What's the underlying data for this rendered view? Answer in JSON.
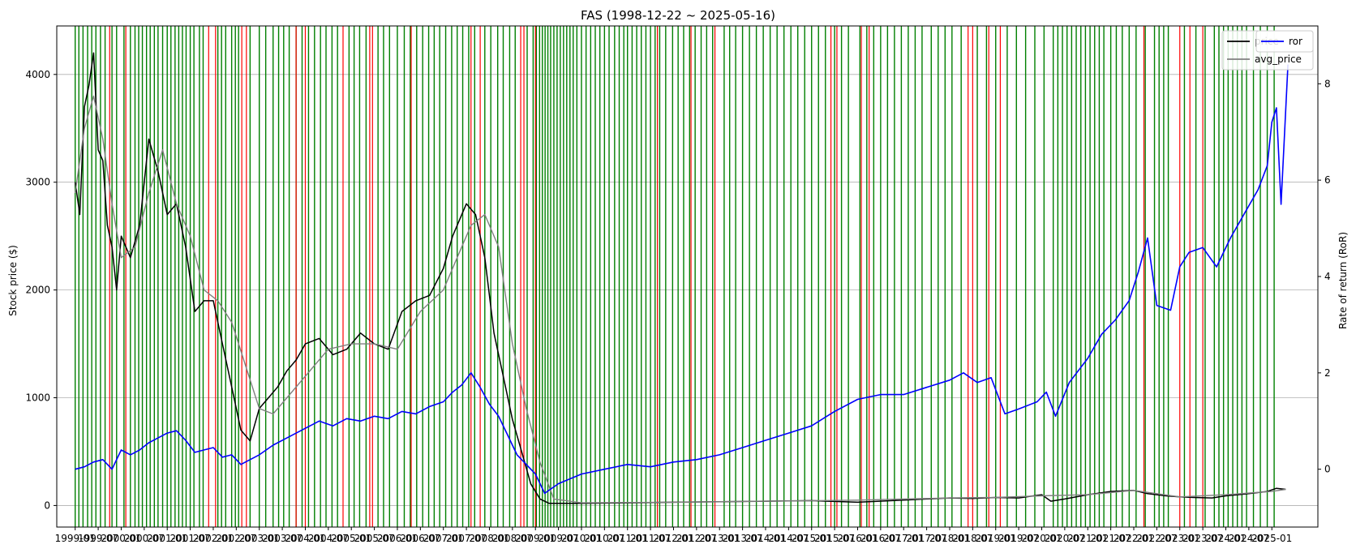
{
  "chart_data": {
    "type": "line",
    "title": "FAS (1998-12-22 ~ 2025-05-16)",
    "ylabel_left": "Stock price ($)",
    "ylabel_right": "Rate of return (RoR)",
    "ylim_left": [
      -200,
      4450
    ],
    "ylim_right": [
      -1.2,
      9.2
    ],
    "xlim": [
      1998.6,
      2026.0
    ],
    "grid": "horizontal",
    "left_ticks": [
      0,
      1000,
      2000,
      3000,
      4000
    ],
    "right_ticks": [
      0,
      2,
      4,
      6,
      8
    ],
    "x_tick_labels": [
      "1999-01",
      "1999-07",
      "2000-01",
      "2000-07",
      "2001-01",
      "2001-07",
      "2002-01",
      "2002-07",
      "2003-01",
      "2003-07",
      "2004-01",
      "2004-07",
      "2005-01",
      "2005-07",
      "2006-01",
      "2006-07",
      "2007-01",
      "2007-07",
      "2008-01",
      "2008-07",
      "2009-01",
      "2009-07",
      "2010-01",
      "2010-07",
      "2011-01",
      "2011-07",
      "2012-01",
      "2012-07",
      "2013-01",
      "2013-07",
      "2014-01",
      "2014-07",
      "2015-01",
      "2015-07",
      "2016-01",
      "2016-07",
      "2017-01",
      "2017-07",
      "2018-01",
      "2018-07",
      "2019-01",
      "2019-07",
      "2020-01",
      "2020-07",
      "2021-01",
      "2021-07",
      "2022-01",
      "2022-07",
      "2023-01",
      "2023-07",
      "2024-01",
      "2024-07",
      "2025-01"
    ],
    "legend_placement": "top-right",
    "legend_left": [
      "price",
      "avg_price"
    ],
    "legend_right": [
      "ror"
    ],
    "colors": {
      "price": "#000000",
      "avg_price": "#808080",
      "ror": "#0000ff",
      "buy_line": "#008000",
      "sell_line": "#ff0000",
      "grid": "#b0b0b0"
    },
    "series": [
      {
        "name": "price",
        "axis": "left",
        "x": [
          1999.0,
          1999.1,
          1999.2,
          1999.3,
          1999.4,
          1999.5,
          1999.6,
          1999.7,
          1999.8,
          1999.9,
          2000.0,
          2000.2,
          2000.4,
          2000.6,
          2000.8,
          2001.0,
          2001.2,
          2001.4,
          2001.6,
          2001.8,
          2002.0,
          2002.2,
          2002.4,
          2002.6,
          2002.8,
          2003.0,
          2003.2,
          2003.4,
          2003.6,
          2003.8,
          2004.0,
          2004.3,
          2004.6,
          2004.9,
          2005.2,
          2005.5,
          2005.8,
          2006.1,
          2006.4,
          2006.7,
          2007.0,
          2007.2,
          2007.4,
          2007.5,
          2007.7,
          2007.9,
          2008.1,
          2008.3,
          2008.5,
          2008.7,
          2008.9,
          2009.1,
          2009.3,
          2010.0,
          2011.0,
          2012.0,
          2013.0,
          2014.0,
          2015.0,
          2015.5,
          2016.0,
          2017.0,
          2017.5,
          2018.0,
          2018.5,
          2019.0,
          2019.5,
          2020.0,
          2020.2,
          2020.5,
          2021.0,
          2021.5,
          2022.0,
          2022.3,
          2022.7,
          2023.0,
          2023.3,
          2023.7,
          2024.0,
          2024.5,
          2024.9,
          2025.1,
          2025.3
        ],
        "values": [
          3000,
          2700,
          3700,
          3900,
          4200,
          3300,
          3200,
          2600,
          2400,
          2000,
          2500,
          2300,
          2600,
          3400,
          3100,
          2700,
          2800,
          2400,
          1800,
          1900,
          1900,
          1500,
          1100,
          700,
          600,
          900,
          1000,
          1100,
          1250,
          1350,
          1500,
          1550,
          1400,
          1450,
          1600,
          1500,
          1450,
          1800,
          1900,
          1950,
          2200,
          2500,
          2700,
          2800,
          2700,
          2300,
          1600,
          1200,
          800,
          500,
          200,
          60,
          20,
          20,
          25,
          30,
          35,
          40,
          45,
          38,
          30,
          50,
          60,
          70,
          65,
          75,
          70,
          100,
          40,
          60,
          100,
          130,
          140,
          110,
          90,
          80,
          75,
          70,
          90,
          110,
          130,
          160,
          150
        ]
      },
      {
        "name": "avg_price",
        "axis": "left",
        "x": [
          1999.0,
          1999.2,
          1999.4,
          1999.6,
          1999.8,
          2000.0,
          2000.3,
          2000.6,
          2000.9,
          2001.2,
          2001.5,
          2001.8,
          2002.1,
          2002.4,
          2002.7,
          2003.0,
          2003.3,
          2003.6,
          2004.0,
          2004.5,
          2005.0,
          2005.5,
          2006.0,
          2006.5,
          2007.0,
          2007.3,
          2007.6,
          2007.9,
          2008.2,
          2008.5,
          2008.8,
          2009.1,
          2009.4,
          2010.0,
          2012.0,
          2014.0,
          2016.0,
          2018.0,
          2019.0,
          2020.0,
          2021.0,
          2022.0,
          2023.0,
          2024.0,
          2025.0,
          2025.3
        ],
        "values": [
          2900,
          3500,
          3800,
          3400,
          2800,
          2300,
          2400,
          2900,
          3300,
          2800,
          2500,
          2000,
          1900,
          1700,
          1300,
          900,
          850,
          1000,
          1200,
          1450,
          1500,
          1500,
          1450,
          1800,
          2000,
          2300,
          2600,
          2700,
          2400,
          1500,
          900,
          400,
          60,
          25,
          30,
          40,
          50,
          70,
          75,
          90,
          100,
          140,
          80,
          100,
          130,
          150
        ]
      },
      {
        "name": "ror",
        "axis": "right",
        "x": [
          1999.0,
          1999.2,
          1999.4,
          1999.6,
          1999.8,
          2000.0,
          2000.2,
          2000.4,
          2000.6,
          2000.8,
          2001.0,
          2001.2,
          2001.4,
          2001.6,
          2001.8,
          2002.0,
          2002.2,
          2002.4,
          2002.6,
          2002.8,
          2003.0,
          2003.3,
          2003.6,
          2004.0,
          2004.3,
          2004.6,
          2004.9,
          2005.2,
          2005.5,
          2005.8,
          2006.1,
          2006.4,
          2006.7,
          2007.0,
          2007.2,
          2007.4,
          2007.6,
          2007.8,
          2008.0,
          2008.2,
          2008.4,
          2008.6,
          2008.8,
          2009.0,
          2009.2,
          2009.5,
          2010.0,
          2010.5,
          2011.0,
          2011.5,
          2012.0,
          2012.5,
          2013.0,
          2013.5,
          2014.0,
          2014.5,
          2015.0,
          2015.5,
          2016.0,
          2016.5,
          2017.0,
          2017.5,
          2018.0,
          2018.3,
          2018.6,
          2018.9,
          2019.2,
          2019.5,
          2019.9,
          2020.1,
          2020.3,
          2020.6,
          2021.0,
          2021.3,
          2021.6,
          2021.9,
          2022.1,
          2022.3,
          2022.5,
          2022.8,
          2023.0,
          2023.2,
          2023.5,
          2023.8,
          2024.1,
          2024.4,
          2024.7,
          2024.9,
          2025.0,
          2025.1,
          2025.2,
          2025.35
        ],
        "values": [
          0.0,
          0.05,
          0.15,
          0.2,
          0.0,
          0.4,
          0.3,
          0.4,
          0.55,
          0.65,
          0.75,
          0.8,
          0.6,
          0.35,
          0.4,
          0.45,
          0.25,
          0.3,
          0.1,
          0.2,
          0.3,
          0.5,
          0.65,
          0.85,
          1.0,
          0.9,
          1.05,
          1.0,
          1.1,
          1.05,
          1.2,
          1.15,
          1.3,
          1.4,
          1.6,
          1.75,
          2.0,
          1.7,
          1.35,
          1.1,
          0.7,
          0.3,
          0.1,
          -0.1,
          -0.5,
          -0.3,
          -0.1,
          0.0,
          0.1,
          0.05,
          0.15,
          0.2,
          0.3,
          0.45,
          0.6,
          0.75,
          0.9,
          1.2,
          1.45,
          1.55,
          1.55,
          1.7,
          1.85,
          2.0,
          1.8,
          1.9,
          1.15,
          1.25,
          1.4,
          1.6,
          1.1,
          1.8,
          2.3,
          2.8,
          3.1,
          3.5,
          4.1,
          4.8,
          3.4,
          3.3,
          4.2,
          4.5,
          4.6,
          4.2,
          4.8,
          5.3,
          5.8,
          6.3,
          7.2,
          7.5,
          5.5,
          8.4
        ]
      }
    ],
    "signal_lines": {
      "buy": [
        1999.0,
        1999.08,
        1999.17,
        1999.27,
        1999.36,
        1999.45,
        1999.55,
        1999.65,
        1999.8,
        1999.9,
        2000.06,
        2000.2,
        2000.3,
        2000.38,
        2000.46,
        2000.55,
        2000.63,
        2000.72,
        2000.8,
        2000.9,
        2001.0,
        2001.08,
        2001.17,
        2001.25,
        2001.33,
        2001.41,
        2001.5,
        2001.58,
        2001.7,
        2001.78,
        2002.1,
        2002.18,
        2002.27,
        2002.4,
        2002.48,
        2002.55,
        2002.8,
        2003.0,
        2003.14,
        2003.3,
        2003.42,
        2003.53,
        2003.65,
        2003.8,
        2003.93,
        2004.07,
        2004.2,
        2004.33,
        2004.45,
        2004.58,
        2004.7,
        2004.95,
        2005.06,
        2005.18,
        2005.32,
        2005.58,
        2005.7,
        2005.83,
        2006.0,
        2006.15,
        2006.28,
        2006.42,
        2006.55,
        2006.68,
        2006.8,
        2006.92,
        2007.05,
        2007.18,
        2007.3,
        2007.42,
        2007.55,
        2007.68,
        2007.9,
        2008.03,
        2008.18,
        2008.3,
        2008.44,
        2008.56,
        2008.82,
        2008.95,
        2009.02,
        2009.09,
        2009.15,
        2009.21,
        2009.27,
        2009.33,
        2009.4,
        2009.47,
        2009.54,
        2009.61,
        2009.68,
        2009.75,
        2009.82,
        2009.9,
        2010.0,
        2010.1,
        2010.2,
        2010.3,
        2010.4,
        2010.5,
        2010.6,
        2010.72,
        2010.82,
        2010.92,
        2011.0,
        2011.1,
        2011.2,
        2011.3,
        2011.4,
        2011.5,
        2011.6,
        2011.7,
        2011.83,
        2011.98,
        2012.1,
        2012.22,
        2012.35,
        2012.47,
        2012.6,
        2012.72,
        2012.85,
        2013.1,
        2013.22,
        2013.35,
        2013.5,
        2013.65,
        2013.8,
        2013.95,
        2014.1,
        2014.25,
        2014.4,
        2014.55,
        2014.7,
        2014.85,
        2015.0,
        2015.15,
        2015.3,
        2015.5,
        2015.65,
        2015.8,
        2016.05,
        2016.2,
        2016.35,
        2016.5,
        2016.65,
        2016.8,
        2016.95,
        2017.1,
        2017.25,
        2017.4,
        2017.6,
        2017.75,
        2017.9,
        2018.05,
        2018.25,
        2018.6,
        2018.8,
        2019.0,
        2019.25,
        2019.45,
        2019.65,
        2019.85,
        2020.05,
        2020.25,
        2020.35,
        2020.45,
        2020.55,
        2020.65,
        2020.75,
        2020.85,
        2020.95,
        2021.05,
        2021.15,
        2021.25,
        2021.35,
        2021.5,
        2021.62,
        2021.75,
        2021.9,
        2022.05,
        2022.25,
        2022.45,
        2022.55,
        2022.65,
        2022.75,
        2023.1,
        2023.35,
        2023.55,
        2023.75,
        2023.85,
        2023.95,
        2024.05,
        2024.15,
        2024.25,
        2024.35,
        2024.45,
        2024.6,
        2024.75,
        2024.9,
        2025.05
      ],
      "sell": [
        1999.75,
        2000.1,
        2001.9,
        2002.05,
        2002.62,
        2002.72,
        2003.8,
        2004.0,
        2004.82,
        2005.4,
        2005.46,
        2006.3,
        2007.6,
        2007.8,
        2008.68,
        2008.75,
        2009.0,
        2011.65,
        2012.38,
        2012.9,
        2015.42,
        2015.55,
        2016.08,
        2016.25,
        2018.4,
        2018.5,
        2018.85,
        2019.1,
        2022.22,
        2023.0,
        2023.22,
        2023.5
      ]
    }
  }
}
